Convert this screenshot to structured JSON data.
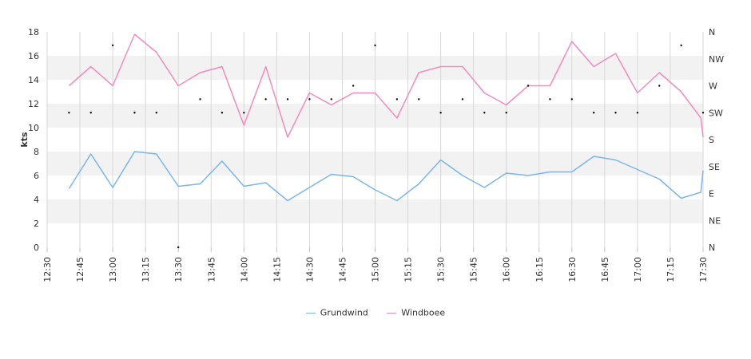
{
  "chart_data": {
    "type": "line",
    "ylabel": "kts",
    "ylim": [
      0,
      18
    ],
    "yticks": [
      "0",
      "2",
      "4",
      "6",
      "8",
      "10",
      "12",
      "14",
      "16",
      "18"
    ],
    "right_axis": {
      "type": "direction",
      "ticks": [
        "N",
        "NE",
        "E",
        "SE",
        "S",
        "SW",
        "W",
        "NW",
        "N"
      ]
    },
    "x_range": [
      "12:30",
      "17:30"
    ],
    "xticks": [
      "12:30",
      "12:45",
      "13:00",
      "13:15",
      "13:30",
      "13:45",
      "14:00",
      "14:15",
      "14:30",
      "14:45",
      "15:00",
      "15:15",
      "15:30",
      "15:45",
      "16:00",
      "16:15",
      "16:30",
      "16:45",
      "17:00",
      "17:15",
      "17:30"
    ],
    "x": [
      "12:40",
      "12:50",
      "13:00",
      "13:10",
      "13:20",
      "13:30",
      "13:40",
      "13:50",
      "14:00",
      "14:10",
      "14:20",
      "14:30",
      "14:40",
      "14:50",
      "15:00",
      "15:10",
      "15:20",
      "15:30",
      "15:40",
      "15:50",
      "16:00",
      "16:10",
      "16:20",
      "16:30",
      "16:40",
      "16:50",
      "17:00",
      "17:10",
      "17:20",
      "17:29",
      "17:30"
    ],
    "series": [
      {
        "name": "Grundwind",
        "color": "#7cb5ec",
        "values": [
          4.9,
          7.8,
          5.0,
          8.0,
          7.8,
          5.1,
          5.3,
          7.2,
          5.1,
          5.4,
          3.9,
          5.0,
          6.1,
          5.9,
          4.8,
          3.9,
          5.3,
          7.3,
          6.0,
          5.0,
          6.2,
          6.0,
          6.3,
          6.3,
          7.6,
          7.3,
          6.5,
          5.7,
          4.1,
          4.6,
          6.4
        ]
      },
      {
        "name": "Windboee",
        "color": "#f08cbe",
        "values": [
          13.5,
          15.1,
          13.5,
          17.8,
          16.3,
          13.5,
          14.6,
          15.1,
          10.2,
          15.1,
          9.2,
          12.9,
          11.9,
          12.9,
          12.9,
          10.8,
          14.6,
          15.1,
          15.1,
          12.9,
          11.9,
          13.5,
          13.5,
          17.2,
          15.1,
          16.2,
          12.9,
          14.6,
          13.0,
          10.8,
          9.2
        ]
      }
    ],
    "direction_points": {
      "x": [
        "12:40",
        "12:50",
        "13:00",
        "13:10",
        "13:20",
        "13:30",
        "13:40",
        "13:50",
        "14:00",
        "14:10",
        "14:20",
        "14:30",
        "14:40",
        "14:50",
        "15:00",
        "15:10",
        "15:20",
        "15:30",
        "15:40",
        "15:50",
        "16:00",
        "16:10",
        "16:20",
        "16:30",
        "16:40",
        "16:50",
        "17:00",
        "17:10",
        "17:20",
        "17:30"
      ],
      "values": [
        "SW",
        "SW",
        "NNW",
        "SW",
        "SW",
        "N",
        "WSW",
        "SW",
        "SW",
        "WSW",
        "WSW",
        "WSW",
        "WSW",
        "W",
        "NNW",
        "WSW",
        "WSW",
        "SW",
        "WSW",
        "SW",
        "SW",
        "W",
        "WSW",
        "WSW",
        "SW",
        "SW",
        "SW",
        "W",
        "NNW",
        "SW"
      ]
    },
    "grid": true,
    "legend": "bottom-center"
  }
}
